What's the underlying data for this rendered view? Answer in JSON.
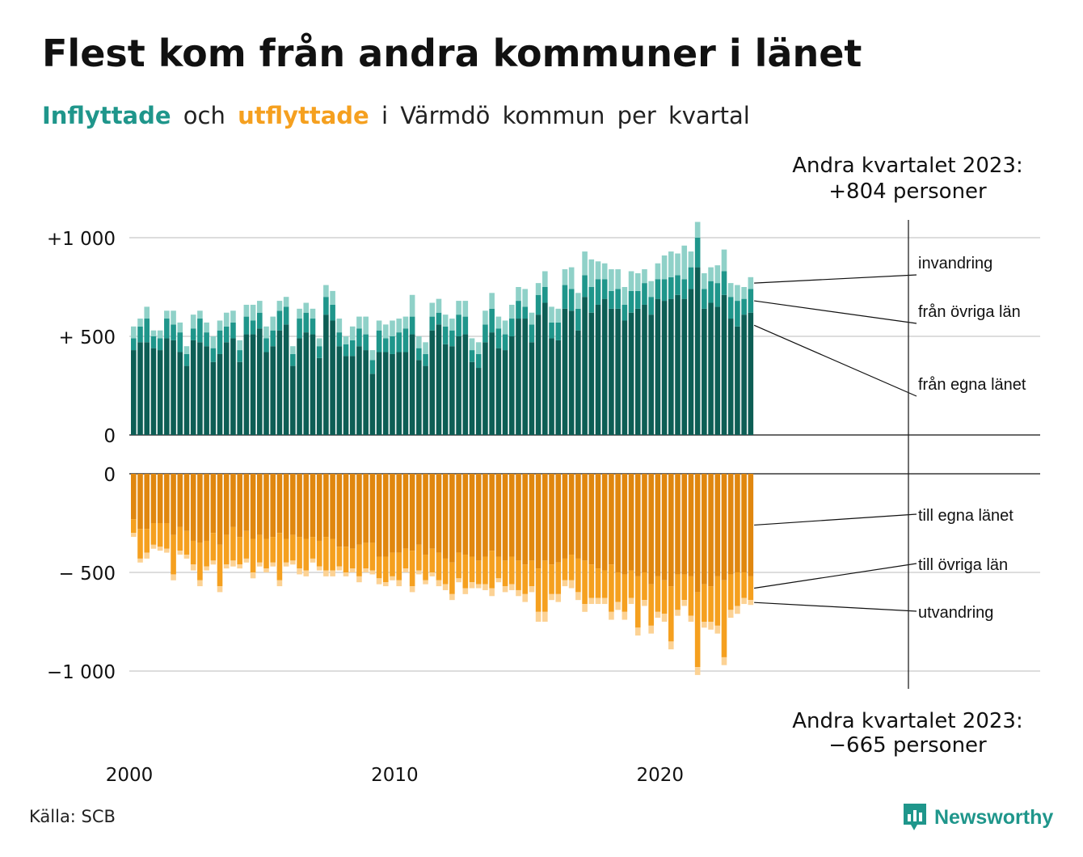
{
  "title": "Flest kom från andra kommuner i länet",
  "subtitle": {
    "part1": "Inflyttade",
    "part2": "och",
    "part3": "utflyttade",
    "part4": "i Värmdö kommun per kvartal"
  },
  "colors": {
    "in_local": "#0d5e55",
    "in_other": "#1f968b",
    "in_abroad": "#8fd1c8",
    "out_local": "#e0870f",
    "out_other": "#f5a01f",
    "out_abroad": "#fcd294"
  },
  "annotations": {
    "top_line1": "Andra kvartalet 2023:",
    "top_line2": "+804 personer",
    "bottom_line1": "Andra kvartalet 2023:",
    "bottom_line2": "−665 personer"
  },
  "source": "Källa: SCB",
  "brand": "Newsworthy",
  "chart_data": {
    "type": "bar",
    "title": "Inflyttade och utflyttade i Värmdö kommun per kvartal",
    "x": {
      "start": "2000 Q1",
      "end": "2023 Q2",
      "tick_labels": [
        "2000",
        "2010",
        "2020"
      ],
      "tick_years": [
        2000,
        2010,
        2020
      ]
    },
    "inflow_axis": {
      "ylim": [
        0,
        1100
      ],
      "ticks": [
        0,
        500,
        1000
      ],
      "tick_labels": [
        "0",
        "+  500",
        "+1 000"
      ]
    },
    "outflow_axis": {
      "ylim": [
        -1100,
        0
      ],
      "ticks": [
        0,
        -500,
        -1000
      ],
      "tick_labels": [
        "0",
        "−  500",
        "−1 000"
      ]
    },
    "inflow_series": [
      {
        "name": "från egna länet",
        "values": [
          430,
          470,
          470,
          440,
          430,
          490,
          480,
          420,
          350,
          480,
          470,
          450,
          370,
          410,
          470,
          490,
          370,
          510,
          510,
          540,
          420,
          450,
          530,
          560,
          350,
          490,
          520,
          510,
          390,
          610,
          580,
          450,
          400,
          400,
          450,
          430,
          310,
          420,
          420,
          410,
          420,
          420,
          510,
          380,
          350,
          530,
          560,
          460,
          450,
          500,
          510,
          370,
          340,
          470,
          520,
          440,
          430,
          500,
          590,
          590,
          470,
          610,
          670,
          490,
          480,
          640,
          630,
          530,
          700,
          620,
          660,
          690,
          640,
          640,
          580,
          620,
          640,
          660,
          610,
          690,
          680,
          690,
          710,
          690,
          740,
          850,
          640,
          670,
          650,
          710,
          590,
          550,
          610,
          620
        ]
      },
      {
        "name": "från övriga län",
        "values": [
          60,
          80,
          120,
          60,
          60,
          100,
          80,
          100,
          60,
          60,
          120,
          70,
          70,
          120,
          80,
          80,
          60,
          90,
          70,
          80,
          70,
          80,
          100,
          90,
          60,
          100,
          100,
          80,
          60,
          90,
          80,
          70,
          60,
          80,
          90,
          80,
          70,
          110,
          70,
          90,
          100,
          120,
          90,
          60,
          60,
          70,
          60,
          90,
          80,
          110,
          90,
          60,
          70,
          90,
          120,
          100,
          80,
          90,
          90,
          60,
          90,
          100,
          80,
          80,
          90,
          120,
          110,
          110,
          110,
          130,
          130,
          100,
          90,
          100,
          80,
          110,
          90,
          110,
          90,
          100,
          110,
          110,
          100,
          100,
          110,
          150,
          100,
          110,
          120,
          120,
          110,
          130,
          80,
          120
        ]
      },
      {
        "name": "invandring",
        "values": [
          60,
          40,
          60,
          30,
          40,
          40,
          70,
          50,
          40,
          70,
          40,
          50,
          60,
          50,
          70,
          60,
          50,
          60,
          80,
          60,
          60,
          70,
          50,
          50,
          40,
          50,
          50,
          50,
          40,
          60,
          70,
          70,
          40,
          70,
          60,
          90,
          50,
          50,
          70,
          80,
          70,
          60,
          110,
          60,
          60,
          70,
          70,
          60,
          60,
          70,
          80,
          60,
          60,
          70,
          80,
          60,
          70,
          70,
          70,
          90,
          60,
          60,
          80,
          80,
          70,
          80,
          110,
          80,
          120,
          140,
          90,
          80,
          110,
          100,
          90,
          100,
          90,
          70,
          80,
          80,
          120,
          130,
          110,
          170,
          80,
          80,
          80,
          70,
          90,
          110,
          70,
          80,
          60,
          60
        ]
      }
    ],
    "outflow_series": [
      {
        "name": "till egna länet",
        "values": [
          -230,
          -280,
          -280,
          -250,
          -250,
          -250,
          -310,
          -270,
          -290,
          -340,
          -350,
          -340,
          -300,
          -360,
          -310,
          -270,
          -320,
          -290,
          -330,
          -310,
          -330,
          -320,
          -300,
          -330,
          -310,
          -320,
          -330,
          -320,
          -340,
          -320,
          -330,
          -370,
          -370,
          -380,
          -360,
          -350,
          -350,
          -420,
          -420,
          -400,
          -400,
          -380,
          -390,
          -360,
          -410,
          -380,
          -400,
          -430,
          -450,
          -400,
          -410,
          -420,
          -440,
          -420,
          -390,
          -420,
          -440,
          -420,
          -440,
          -460,
          -440,
          -480,
          -440,
          -460,
          -450,
          -430,
          -410,
          -430,
          -440,
          -460,
          -480,
          -490,
          -460,
          -500,
          -510,
          -490,
          -520,
          -500,
          -560,
          -520,
          -540,
          -570,
          -510,
          -510,
          -520,
          -600,
          -560,
          -570,
          -520,
          -540,
          -510,
          -500,
          -500,
          -520
        ]
      },
      {
        "name": "till övriga län",
        "values": [
          -70,
          -150,
          -120,
          -110,
          -120,
          -130,
          -200,
          -120,
          -120,
          -120,
          -190,
          -130,
          -140,
          -210,
          -150,
          -170,
          -140,
          -140,
          -170,
          -140,
          -150,
          -130,
          -240,
          -120,
          -130,
          -160,
          -160,
          -110,
          -130,
          -170,
          -160,
          -100,
          -130,
          -100,
          -160,
          -130,
          -140,
          -110,
          -130,
          -120,
          -140,
          -100,
          -180,
          -130,
          -130,
          -120,
          -140,
          -130,
          -160,
          -130,
          -170,
          -130,
          -120,
          -140,
          -190,
          -110,
          -130,
          -140,
          -150,
          -150,
          -130,
          -220,
          -260,
          -150,
          -160,
          -110,
          -130,
          -170,
          -220,
          -170,
          -150,
          -140,
          -240,
          -150,
          -190,
          -140,
          -260,
          -140,
          -210,
          -180,
          -170,
          -280,
          -180,
          -130,
          -200,
          -380,
          -190,
          -180,
          -250,
          -390,
          -180,
          -170,
          -130,
          -120
        ]
      },
      {
        "name": "utvandring",
        "values": [
          -20,
          -20,
          -30,
          -20,
          -20,
          -20,
          -30,
          -20,
          -20,
          -30,
          -30,
          -20,
          -20,
          -30,
          -20,
          -30,
          -20,
          -20,
          -30,
          -20,
          -20,
          -20,
          -30,
          -20,
          -20,
          -30,
          -30,
          -20,
          -20,
          -30,
          -30,
          -20,
          -20,
          -20,
          -30,
          -20,
          -20,
          -30,
          -20,
          -20,
          -30,
          -20,
          -30,
          -20,
          -20,
          -20,
          -30,
          -30,
          -30,
          -20,
          -30,
          -30,
          -20,
          -30,
          -40,
          -20,
          -30,
          -30,
          -30,
          -40,
          -30,
          -50,
          -50,
          -30,
          -40,
          -30,
          -40,
          -40,
          -40,
          -30,
          -30,
          -30,
          -40,
          -40,
          -40,
          -30,
          -40,
          -30,
          -40,
          -30,
          -40,
          -40,
          -30,
          -30,
          -30,
          -40,
          -30,
          -40,
          -40,
          -40,
          -40,
          -40,
          -30,
          -25
        ]
      }
    ],
    "legend_placement": "right of last bar (direct labels)",
    "grid": true
  }
}
